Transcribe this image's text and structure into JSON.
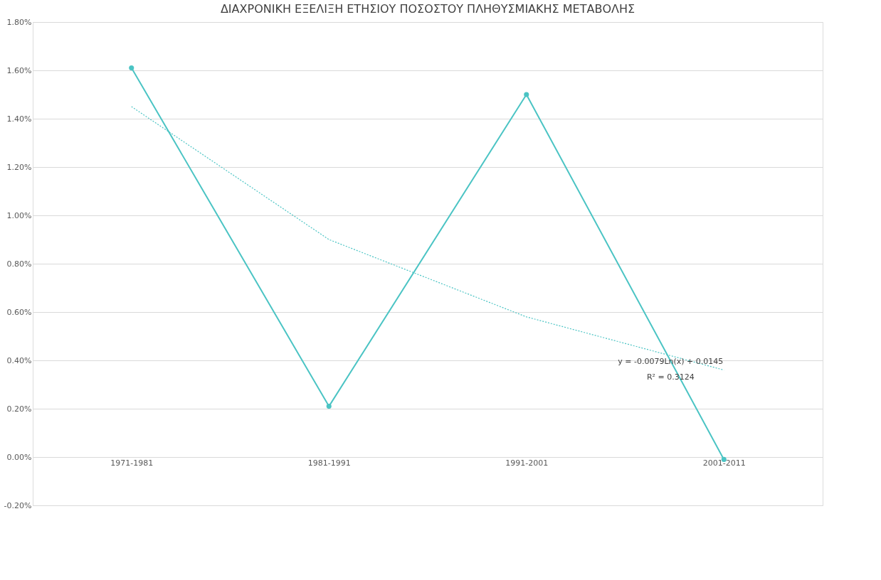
{
  "chart_data": {
    "type": "line",
    "title": "ΔΙΑΧΡΟΝΙΚΗ ΕΞΕΛΙΞΗ ΕΤΗΣΙΟΥ ΠΟΣΟΣΤΟΥ ΠΛΗΘΥΣΜΙΑΚΗΣ ΜΕΤΑΒΟΛΗΣ",
    "categories": [
      "1971-1981",
      "1981-1991",
      "1991-2001",
      "2001-2011"
    ],
    "series": [
      {
        "color": "#4bc4c4",
        "values": [
          1.61,
          0.21,
          1.5,
          -0.01
        ],
        "marker": "circle",
        "line_style": "solid"
      },
      {
        "color": "#4bc4c4",
        "values": [
          1.45,
          0.9,
          0.58,
          0.36
        ],
        "marker": "none",
        "line_style": "dotted"
      }
    ],
    "annotations": [
      "y = -0.0079Ln(x) + 0.0145",
      "R² = 0.3124"
    ],
    "ylim": [
      -0.2,
      1.8
    ],
    "yticks": [
      {
        "value": -0.2,
        "label": "-0.20%"
      },
      {
        "value": 0,
        "label": "0.00%"
      },
      {
        "value": 0.2,
        "label": "0.20%"
      },
      {
        "value": 0.4,
        "label": "0.40%"
      },
      {
        "value": 0.6,
        "label": "0.60%"
      },
      {
        "value": 0.8,
        "label": "0.80%"
      },
      {
        "value": 1.0,
        "label": "1.00%"
      },
      {
        "value": 1.2,
        "label": "1.20%"
      },
      {
        "value": 1.4,
        "label": "1.40%"
      },
      {
        "value": 1.6,
        "label": "1.60%"
      },
      {
        "value": 1.8,
        "label": "1.80%"
      }
    ],
    "grid": "y",
    "legend": false
  }
}
